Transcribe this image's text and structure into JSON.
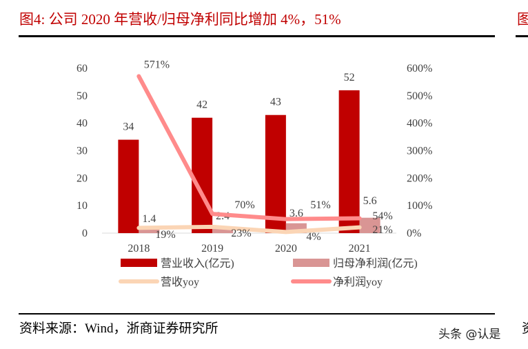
{
  "title": "图4:  公司 2020 年营收/归母净利同比增加 4%，51%",
  "next_title_fragment": "图",
  "source": "资料来源：Wind，浙商证券研究所",
  "next_source_fragment": "资",
  "watermark": "头条 @认是",
  "chart_data": {
    "type": "bar+line",
    "categories": [
      "2018",
      "2019",
      "2020",
      "2021"
    ],
    "left_axis": {
      "ylim": [
        0,
        60
      ],
      "ticks": [
        "0",
        "10",
        "20",
        "30",
        "40",
        "50",
        "60"
      ]
    },
    "right_axis": {
      "ylim": [
        0,
        600
      ],
      "ticks": [
        "0%",
        "100%",
        "200%",
        "300%",
        "400%",
        "500%",
        "600%"
      ]
    },
    "series": [
      {
        "name": "营业收入(亿元)",
        "type": "bar",
        "axis": "left",
        "color": "#c00000",
        "values": [
          34,
          42,
          43,
          52
        ],
        "labels": [
          "34",
          "42",
          "43",
          "52"
        ]
      },
      {
        "name": "归母净利润(亿元)",
        "type": "bar",
        "axis": "left",
        "color": "#d99594",
        "values": [
          1.4,
          2.4,
          3.6,
          5.6
        ],
        "labels": [
          "1.4",
          "2.4",
          "3.6",
          "5.6"
        ]
      },
      {
        "name": "营收yoy",
        "type": "line",
        "axis": "right",
        "color": "#fbd5b5",
        "values": [
          19,
          23,
          4,
          21
        ],
        "labels": [
          "19%",
          "23%",
          "4%",
          "21%"
        ]
      },
      {
        "name": "净利润yoy",
        "type": "line",
        "axis": "right",
        "color": "#ff8b8b",
        "values": [
          571,
          70,
          51,
          54
        ],
        "labels": [
          "571%",
          "70%",
          "51%",
          "54%"
        ]
      }
    ],
    "legend": "bottom"
  }
}
